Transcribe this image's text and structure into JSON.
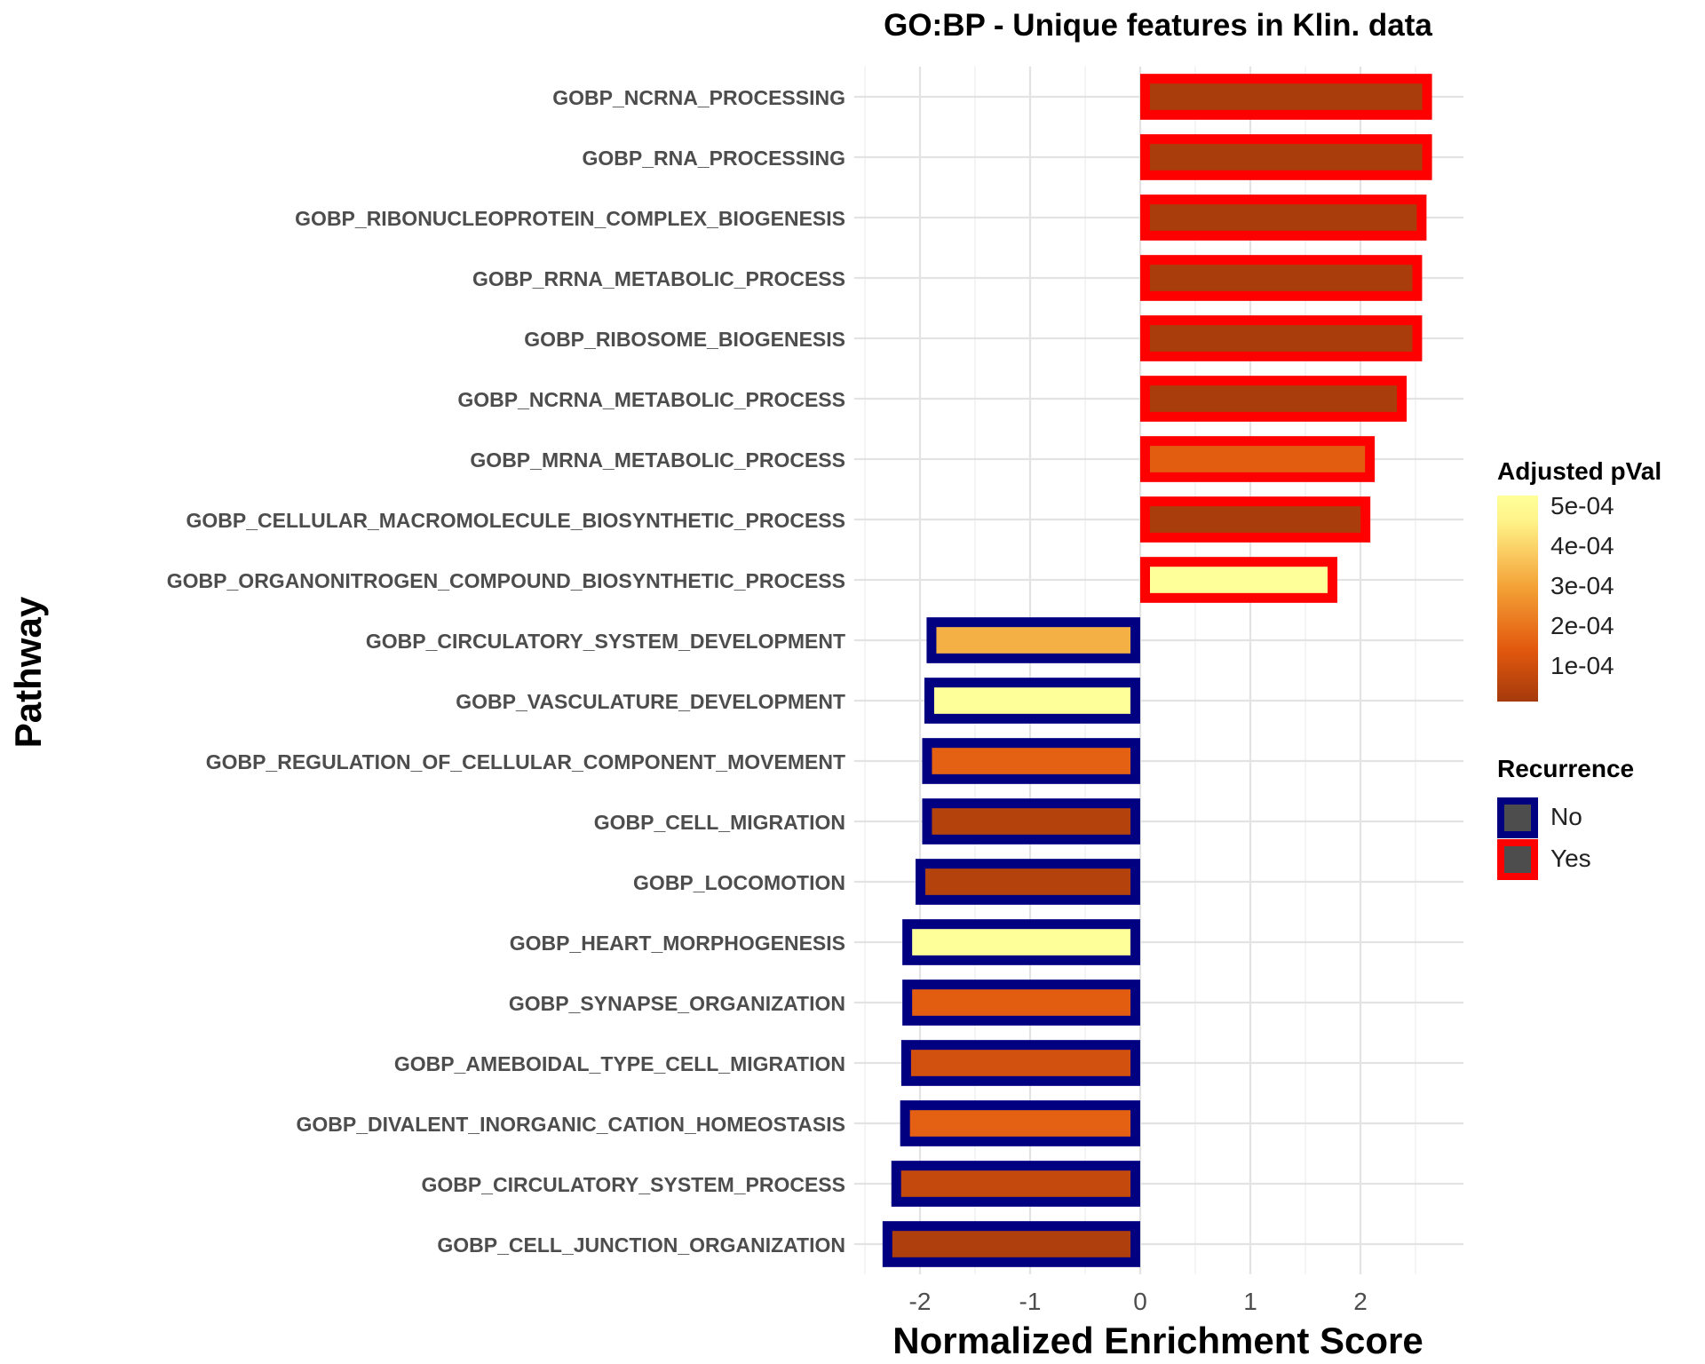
{
  "chart_data": {
    "type": "bar",
    "orientation": "horizontal",
    "title": "GO:BP - Unique features in Klin. data",
    "xlabel": "Normalized Enrichment Score",
    "ylabel": "Pathway",
    "xlim": [
      -2.6,
      2.9
    ],
    "xticks": [
      -2,
      -1,
      0,
      1,
      2
    ],
    "xtick_labels": [
      "-2",
      "-1",
      "0",
      "1",
      "2"
    ],
    "grid": true,
    "categories": [
      "GOBP_NCRNA_PROCESSING",
      "GOBP_RNA_PROCESSING",
      "GOBP_RIBONUCLEOPROTEIN_COMPLEX_BIOGENESIS",
      "GOBP_RRNA_METABOLIC_PROCESS",
      "GOBP_RIBOSOME_BIOGENESIS",
      "GOBP_NCRNA_METABOLIC_PROCESS",
      "GOBP_MRNA_METABOLIC_PROCESS",
      "GOBP_CELLULAR_MACROMOLECULE_BIOSYNTHETIC_PROCESS",
      "GOBP_ORGANONITROGEN_COMPOUND_BIOSYNTHETIC_PROCESS",
      "GOBP_CIRCULATORY_SYSTEM_DEVELOPMENT",
      "GOBP_VASCULATURE_DEVELOPMENT",
      "GOBP_REGULATION_OF_CELLULAR_COMPONENT_MOVEMENT",
      "GOBP_CELL_MIGRATION",
      "GOBP_LOCOMOTION",
      "GOBP_HEART_MORPHOGENESIS",
      "GOBP_SYNAPSE_ORGANIZATION",
      "GOBP_AMEBOIDAL_TYPE_CELL_MIGRATION",
      "GOBP_DIVALENT_INORGANIC_CATION_HOMEOSTASIS",
      "GOBP_CIRCULATORY_SYSTEM_PROCESS",
      "GOBP_CELL_JUNCTION_ORGANIZATION"
    ],
    "values": [
      2.65,
      2.65,
      2.6,
      2.56,
      2.56,
      2.42,
      2.13,
      2.09,
      1.79,
      -1.94,
      -1.96,
      -1.98,
      -1.98,
      -2.04,
      -2.16,
      -2.16,
      -2.17,
      -2.18,
      -2.26,
      -2.34
    ],
    "adjusted_pval": [
      1e-05,
      1e-05,
      1e-05,
      1e-05,
      1e-05,
      1e-05,
      0.00013,
      1e-05,
      0.0005,
      0.00031,
      0.0005,
      0.00014,
      3e-05,
      3e-05,
      0.0005,
      0.00013,
      9e-05,
      0.00014,
      6e-05,
      2e-05
    ],
    "recurrence": [
      "Yes",
      "Yes",
      "Yes",
      "Yes",
      "Yes",
      "Yes",
      "Yes",
      "Yes",
      "Yes",
      "No",
      "No",
      "No",
      "No",
      "No",
      "No",
      "No",
      "No",
      "No",
      "No",
      "No"
    ],
    "legend": {
      "placement": "right",
      "colorbar_title": "Adjusted pVal",
      "colorbar_labels": [
        "5e-04",
        "4e-04",
        "3e-04",
        "2e-04",
        "1e-04"
      ],
      "colorbar_min_color": "#A53A0C",
      "colorbar_max_color": "#FFFF99",
      "outline_title": "Recurrence",
      "outline_entries": [
        {
          "label": "No",
          "color": "#000080"
        },
        {
          "label": "Yes",
          "color": "#FF0000"
        }
      ]
    }
  }
}
